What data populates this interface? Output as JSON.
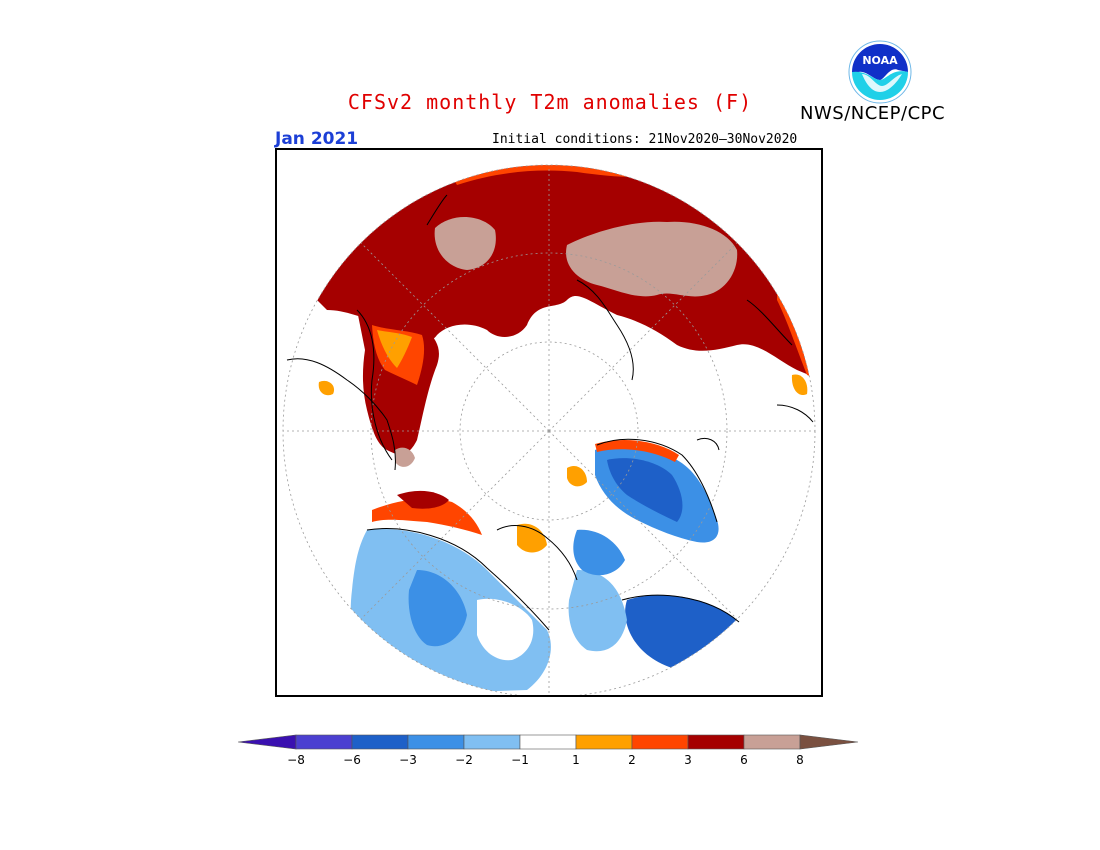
{
  "header": {
    "title": "CFSv2 monthly T2m anomalies (F)",
    "agency": "NWS/NCEP/CPC",
    "logo_text": "NOAA",
    "month": "Jan 2021",
    "initial_conditions": "Initial conditions: 21Nov2020–30Nov2020"
  },
  "colors": {
    "title": "#e00000",
    "month": "#1c3fd6"
  },
  "legend": {
    "ticks": [
      "−8",
      "−6",
      "−3",
      "−2",
      "−1",
      "1",
      "2",
      "3",
      "6",
      "8"
    ],
    "bins": [
      {
        "color": "#3a10b0",
        "range": "< -8"
      },
      {
        "color": "#4b3fd0",
        "range": "-8 to -6"
      },
      {
        "color": "#1e60c8",
        "range": "-6 to -3"
      },
      {
        "color": "#3c90e6",
        "range": "-3 to -2"
      },
      {
        "color": "#80bff2",
        "range": "-2 to -1"
      },
      {
        "color": "#ffffff",
        "range": "-1 to 1"
      },
      {
        "color": "#ffa000",
        "range": "1 to 2"
      },
      {
        "color": "#ff4500",
        "range": "2 to 3"
      },
      {
        "color": "#a50000",
        "range": "3 to 6"
      },
      {
        "color": "#c8a096",
        "range": "6 to 8"
      },
      {
        "color": "#7a5040",
        "range": "> 8"
      }
    ]
  }
}
